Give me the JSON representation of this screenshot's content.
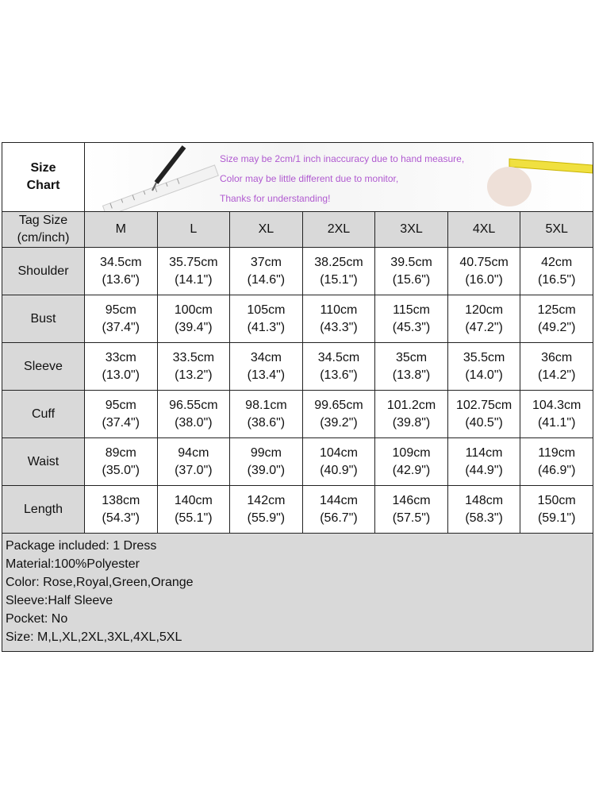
{
  "title_line1": "Size",
  "title_line2": "Chart",
  "notice": [
    "Size may be 2cm/1 inch inaccuracy due to hand measure,",
    "Color may be little different due to monitor,",
    "Thanks for understanding!"
  ],
  "tag_label_line1": "Tag Size",
  "tag_label_line2": "(cm/inch)",
  "sizes": [
    "M",
    "L",
    "XL",
    "2XL",
    "3XL",
    "4XL",
    "5XL"
  ],
  "rows": [
    {
      "label": "Shoulder",
      "cm": [
        "34.5cm",
        "35.75cm",
        "37cm",
        "38.25cm",
        "39.5cm",
        "40.75cm",
        "42cm"
      ],
      "inch": [
        "(13.6\")",
        "(14.1\")",
        "(14.6\")",
        "(15.1\")",
        "(15.6\")",
        "(16.0\")",
        "(16.5\")"
      ]
    },
    {
      "label": "Bust",
      "cm": [
        "95cm",
        "100cm",
        "105cm",
        "110cm",
        "115cm",
        "120cm",
        "125cm"
      ],
      "inch": [
        "(37.4\")",
        "(39.4\")",
        "(41.3\")",
        "(43.3\")",
        "(45.3\")",
        "(47.2\")",
        "(49.2\")"
      ]
    },
    {
      "label": "Sleeve",
      "cm": [
        "33cm",
        "33.5cm",
        "34cm",
        "34.5cm",
        "35cm",
        "35.5cm",
        "36cm"
      ],
      "inch": [
        "(13.0\")",
        "(13.2\")",
        "(13.4\")",
        "(13.6\")",
        "(13.8\")",
        "(14.0\")",
        "(14.2\")"
      ]
    },
    {
      "label": "Cuff",
      "cm": [
        "95cm",
        "96.55cm",
        "98.1cm",
        "99.65cm",
        "101.2cm",
        "102.75cm",
        "104.3cm"
      ],
      "inch": [
        "(37.4\")",
        "(38.0\")",
        "(38.6\")",
        "(39.2\")",
        "(39.8\")",
        "(40.5\")",
        "(41.1\")"
      ]
    },
    {
      "label": "Waist",
      "cm": [
        "89cm",
        "94cm",
        "99cm",
        "104cm",
        "109cm",
        "114cm",
        "119cm"
      ],
      "inch": [
        "(35.0\")",
        "(37.0\")",
        "(39.0\")",
        "(40.9\")",
        "(42.9\")",
        "(44.9\")",
        "(46.9\")"
      ]
    },
    {
      "label": "Length",
      "cm": [
        "138cm",
        "140cm",
        "142cm",
        "144cm",
        "146cm",
        "148cm",
        "150cm"
      ],
      "inch": [
        "(54.3\")",
        "(55.1\")",
        "(55.9\")",
        "(56.7\")",
        "(57.5\")",
        "(58.3\")",
        "(59.1\")"
      ]
    }
  ],
  "details": [
    "Package included: 1 Dress",
    "Material:100%Polyester",
    "Color: Rose,Royal,Green,Orange",
    "Sleeve:Half Sleeve",
    "Pocket: No",
    "Size: M,L,XL,2XL,3XL,4XL,5XL"
  ]
}
